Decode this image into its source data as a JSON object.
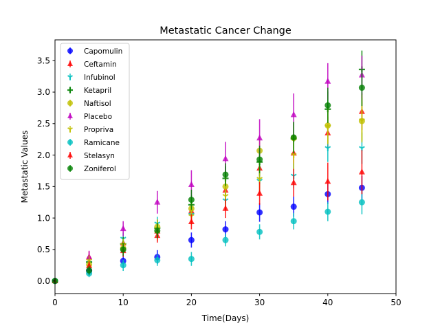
{
  "chart_data": {
    "type": "scatter",
    "title": "Metastatic Cancer Change",
    "xlabel": "Time(Days)",
    "ylabel": "Metastatic Values",
    "xlim": [
      0,
      50
    ],
    "ylim": [
      -0.2,
      3.83
    ],
    "x_ticks": [
      0,
      10,
      20,
      30,
      40,
      50
    ],
    "x_tick_labels": [
      "0",
      "10",
      "20",
      "30",
      "40",
      "50"
    ],
    "y_ticks": [
      0.0,
      0.5,
      1.0,
      1.5,
      2.0,
      2.5,
      3.0,
      3.5
    ],
    "y_tick_labels": [
      "0.0",
      "0.5",
      "1.0",
      "1.5",
      "2.0",
      "2.5",
      "3.0",
      "3.5"
    ],
    "legend_position": "top-left",
    "grid": false,
    "x": [
      0,
      5,
      10,
      15,
      20,
      25,
      30,
      35,
      40,
      45
    ],
    "series": [
      {
        "name": "Capomulin",
        "color": "#0000ff",
        "marker": "circle",
        "values": [
          0,
          0.16,
          0.32,
          0.38,
          0.65,
          0.82,
          1.09,
          1.18,
          1.38,
          1.48
        ],
        "errors": [
          0,
          0.07,
          0.1,
          0.11,
          0.12,
          0.13,
          0.15,
          0.16,
          0.16,
          0.19
        ]
      },
      {
        "name": "Ceftamin",
        "color": "#ff0000",
        "marker": "triangle-up",
        "values": [
          0,
          0.38,
          0.6,
          0.79,
          1.11,
          1.44,
          1.79,
          2.03,
          2.35,
          2.69
        ],
        "errors": [
          0,
          0.09,
          0.1,
          0.12,
          0.15,
          0.18,
          0.22,
          0.25,
          0.26,
          0.29
        ]
      },
      {
        "name": "Infubinol",
        "color": "#00bfbf",
        "marker": "tri-down",
        "values": [
          0,
          0.28,
          0.67,
          0.91,
          1.05,
          1.28,
          1.59,
          1.67,
          2.11,
          2.11
        ],
        "errors": [
          0,
          0.09,
          0.1,
          0.11,
          0.12,
          0.15,
          0.18,
          0.2,
          0.22,
          0.25
        ]
      },
      {
        "name": "Ketapril",
        "color": "#008000",
        "marker": "plus",
        "values": [
          0,
          0.3,
          0.59,
          0.84,
          1.21,
          1.63,
          1.89,
          2.26,
          2.73,
          3.36
        ],
        "errors": [
          0,
          0.1,
          0.11,
          0.13,
          0.15,
          0.19,
          0.22,
          0.25,
          0.28,
          0.3
        ]
      },
      {
        "name": "Naftisol",
        "color": "#bfbf00",
        "marker": "circle",
        "values": [
          0,
          0.26,
          0.52,
          0.86,
          1.15,
          1.5,
          2.07,
          2.27,
          2.47,
          2.54
        ],
        "errors": [
          0,
          0.09,
          0.1,
          0.12,
          0.15,
          0.18,
          0.22,
          0.25,
          0.28,
          0.31
        ]
      },
      {
        "name": "Placebo",
        "color": "#bf00bf",
        "marker": "triangle-up",
        "values": [
          0,
          0.38,
          0.83,
          1.25,
          1.53,
          1.94,
          2.27,
          2.64,
          3.17,
          3.27
        ],
        "errors": [
          0,
          0.1,
          0.12,
          0.18,
          0.23,
          0.27,
          0.3,
          0.34,
          0.29,
          0.31
        ]
      },
      {
        "name": "Propriva",
        "color": "#bfbf00",
        "marker": "tri-down",
        "values": [
          0,
          0.32,
          0.57,
          0.76,
          1.03,
          1.35,
          1.62,
          2.0,
          2.45,
          2.55
        ],
        "errors": [
          0,
          0.09,
          0.1,
          0.12,
          0.14,
          0.18,
          0.22,
          0.25,
          0.28,
          0.35
        ]
      },
      {
        "name": "Ramicane",
        "color": "#00bfbf",
        "marker": "circle",
        "values": [
          0,
          0.12,
          0.25,
          0.33,
          0.35,
          0.65,
          0.78,
          0.95,
          1.1,
          1.25
        ],
        "errors": [
          0,
          0.06,
          0.09,
          0.09,
          0.11,
          0.1,
          0.12,
          0.13,
          0.15,
          0.19
        ]
      },
      {
        "name": "Stelasyn",
        "color": "#ff0000",
        "marker": "triangle-up",
        "values": [
          0,
          0.24,
          0.48,
          0.72,
          0.94,
          1.15,
          1.39,
          1.56,
          1.58,
          1.73
        ],
        "errors": [
          0,
          0.07,
          0.1,
          0.11,
          0.12,
          0.15,
          0.18,
          0.22,
          0.3,
          0.35
        ]
      },
      {
        "name": "Zoniferol",
        "color": "#008000",
        "marker": "circle",
        "values": [
          0,
          0.17,
          0.5,
          0.8,
          1.29,
          1.69,
          1.93,
          2.28,
          2.79,
          3.07
        ],
        "errors": [
          0,
          0.07,
          0.1,
          0.12,
          0.16,
          0.18,
          0.22,
          0.25,
          0.28,
          0.29
        ]
      }
    ]
  }
}
